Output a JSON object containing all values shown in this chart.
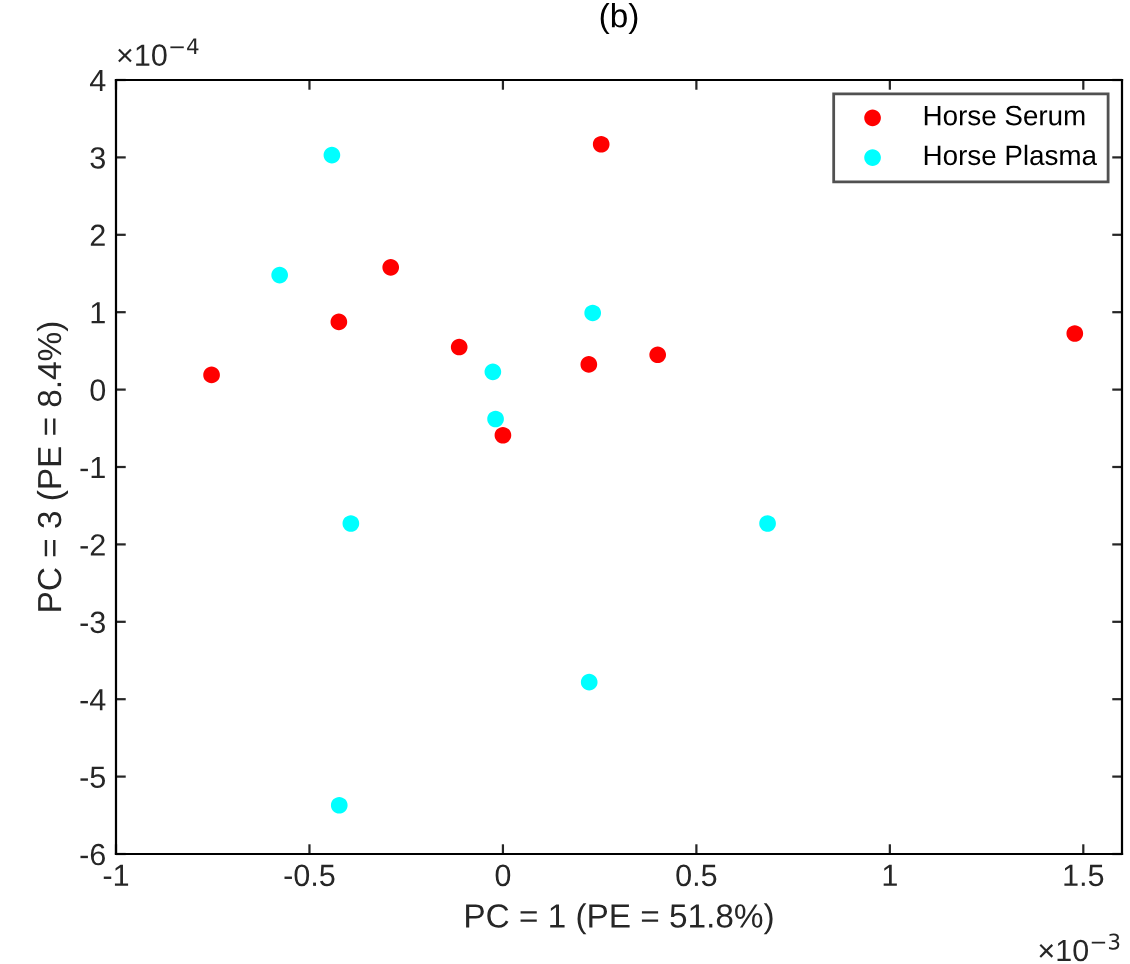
{
  "chart_data": {
    "type": "scatter",
    "title": "(b)",
    "xlabel": "PC = 1 (PE = 51.8%)",
    "ylabel": "PC = 3 (PE = 8.4%)",
    "annotations": [
      "×10$^{−4}$",
      "×10$^{−3}$"
    ],
    "xlim": [
      -1,
      1.6
    ],
    "xticks": [
      -1,
      -0.5,
      0,
      0.5,
      1,
      1.5
    ],
    "ylim": [
      -6,
      4
    ],
    "yticks": [
      -6,
      -5,
      -4,
      -3,
      -2,
      -1,
      0,
      1,
      2,
      3,
      4
    ],
    "marker": "circle",
    "grid": false,
    "legend": "top right",
    "series": [
      {
        "name": "Horse Serum",
        "color": "#ff0000",
        "x": [
          0.254,
          -0.29,
          -0.424,
          -0.113,
          -0.753,
          0.222,
          0.4,
          0.0,
          1.478
        ],
        "values": [
          3.17,
          1.58,
          0.875,
          0.55,
          0.19,
          0.325,
          0.45,
          -0.59,
          0.725
        ]
      },
      {
        "name": "Horse Plasma",
        "color": "#00ffff",
        "x": [
          -0.442,
          -0.577,
          0.232,
          -0.026,
          -0.019,
          -0.393,
          0.684,
          0.223,
          -0.423
        ],
        "values": [
          3.03,
          1.48,
          0.99,
          0.23,
          -0.38,
          -1.73,
          -1.73,
          -3.78,
          -5.37
        ]
      }
    ]
  }
}
